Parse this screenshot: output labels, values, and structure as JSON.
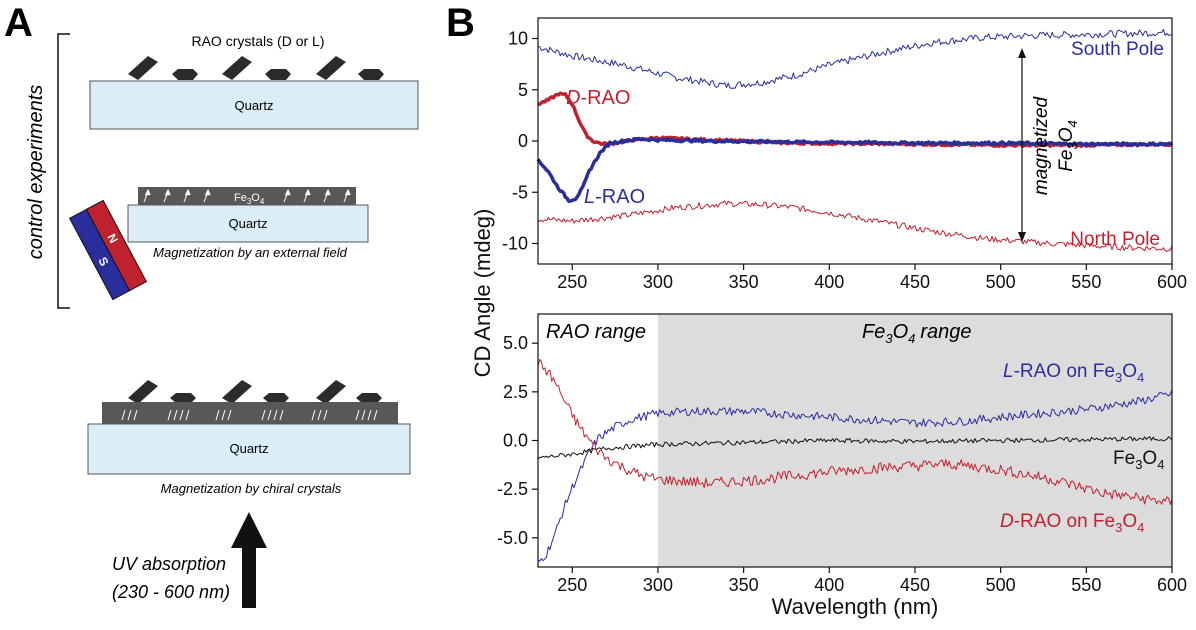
{
  "panel_a": {
    "letter": "A",
    "control_experiments": "control experiments",
    "rao_crystals": "RAO crystals (D or L)",
    "quartz": "Quartz",
    "fe3o4": {
      "base": "Fe",
      "sub1": "3",
      "mid": "O",
      "sub2": "4"
    },
    "magnet": {
      "north": "N",
      "south": "S"
    },
    "caption_external": "Magnetization by an external field",
    "caption_chiral": "Magnetization by chiral crystals",
    "uv_line1": "UV absorption",
    "uv_line2": "(230 - 600 nm)"
  },
  "panel_b": {
    "letter": "B",
    "shared_ylabel": "CD Angle (mdeg)",
    "xlabel": "Wavelength (nm)"
  },
  "colors": {
    "red": "#c0212e",
    "blue": "#2a2e9c",
    "black": "#111111",
    "quartz": "#dbeef7",
    "film": "#585858",
    "shade": "#dcdcdc"
  },
  "chart_data": [
    {
      "type": "line",
      "id": "top",
      "xlim": [
        230,
        600
      ],
      "ylim": [
        -12,
        12
      ],
      "xticks": [
        250,
        300,
        350,
        400,
        450,
        500,
        550,
        600
      ],
      "yticks": [
        10,
        5,
        0,
        -5,
        -10
      ],
      "annotations": {
        "d_rao": {
          "prefix": "D",
          "rest": "-RAO"
        },
        "l_rao": {
          "prefix": "L",
          "rest": "-RAO"
        },
        "south": "South Pole",
        "north": "North Pole",
        "magnetized": "magnetized",
        "fe": "Fe",
        "sub3": "3",
        "o": "O",
        "sub4": "4"
      },
      "series": [
        {
          "name": "South Pole",
          "color": "#2a2e9c",
          "width": 1,
          "noise": 0.35,
          "x": [
            230,
            250,
            280,
            310,
            340,
            360,
            380,
            400,
            430,
            460,
            490,
            520,
            550,
            575,
            600
          ],
          "y": [
            9.2,
            8.3,
            7.4,
            6.2,
            5.4,
            5.7,
            6.4,
            7.4,
            8.6,
            9.6,
            10.1,
            10.3,
            10.4,
            10.5,
            10.6
          ]
        },
        {
          "name": "North Pole",
          "color": "#c0212e",
          "width": 1,
          "noise": 0.3,
          "x": [
            230,
            250,
            280,
            310,
            340,
            360,
            380,
            400,
            430,
            460,
            490,
            520,
            550,
            575,
            600
          ],
          "y": [
            -7.6,
            -7.8,
            -7.3,
            -6.5,
            -6.1,
            -6.2,
            -6.5,
            -7.0,
            -7.9,
            -8.8,
            -9.5,
            -9.9,
            -10.2,
            -10.4,
            -10.5
          ]
        },
        {
          "name": "D-RAO",
          "color": "#c0212e",
          "width": 3.5,
          "noise": 0.12,
          "x": [
            230,
            236,
            242,
            246,
            250,
            254,
            258,
            262,
            268,
            275,
            285,
            300,
            330,
            380,
            450,
            500,
            550,
            600
          ],
          "y": [
            3.6,
            4.0,
            4.6,
            4.5,
            3.6,
            2.0,
            0.6,
            0.0,
            -0.3,
            -0.2,
            0.1,
            0.3,
            0.1,
            -0.2,
            -0.3,
            -0.4,
            -0.4,
            -0.3
          ]
        },
        {
          "name": "L-RAO",
          "color": "#2a2e9c",
          "width": 3.5,
          "noise": 0.12,
          "x": [
            230,
            236,
            242,
            248,
            252,
            256,
            260,
            266,
            272,
            280,
            290,
            300,
            330,
            380,
            450,
            500,
            550,
            600
          ],
          "y": [
            -1.8,
            -3.0,
            -4.6,
            -5.8,
            -5.6,
            -4.6,
            -2.9,
            -1.2,
            -0.2,
            0.0,
            0.2,
            0.1,
            0.0,
            -0.1,
            -0.2,
            -0.2,
            -0.3,
            -0.3
          ]
        }
      ]
    },
    {
      "type": "line",
      "id": "bottom",
      "xlim": [
        230,
        600
      ],
      "ylim": [
        -6.5,
        6.5
      ],
      "xticks": [
        250,
        300,
        350,
        400,
        450,
        500,
        550,
        600
      ],
      "yticks": [
        5.0,
        2.5,
        0.0,
        -2.5,
        -5.0
      ],
      "shaded_region": [
        300,
        600
      ],
      "annotations": {
        "rao_range": "RAO range",
        "fe_range": {
          "fe": "Fe",
          "sub3": "3",
          "o": "O",
          "sub4": "4",
          "rest": "range"
        },
        "l_on": {
          "prefix": "L",
          "rest": "-RAO on Fe",
          "sub3": "3",
          "o": "O",
          "sub4": "4"
        },
        "d_on": {
          "prefix": "D",
          "rest": "-RAO on Fe",
          "sub3": "3",
          "o": "O",
          "sub4": "4"
        },
        "fe3o4": {
          "fe": "Fe",
          "sub3": "3",
          "o": "O",
          "sub4": "4"
        }
      },
      "series": [
        {
          "name": "L-RAO on Fe3O4",
          "color": "#2a2e9c",
          "width": 1,
          "noise": 0.22,
          "x": [
            230,
            235,
            240,
            245,
            250,
            255,
            260,
            265,
            270,
            275,
            285,
            300,
            320,
            350,
            400,
            450,
            480,
            500,
            550,
            580,
            600
          ],
          "y": [
            -6.3,
            -5.8,
            -4.8,
            -3.5,
            -2.4,
            -1.5,
            -0.6,
            0.1,
            0.4,
            0.7,
            1.1,
            1.4,
            1.5,
            1.5,
            1.2,
            0.9,
            1.0,
            1.2,
            1.6,
            2.0,
            2.4
          ]
        },
        {
          "name": "Fe3O4",
          "color": "#111111",
          "width": 1,
          "noise": 0.12,
          "x": [
            230,
            250,
            270,
            300,
            350,
            400,
            450,
            500,
            550,
            600
          ],
          "y": [
            -0.9,
            -0.7,
            -0.4,
            -0.2,
            -0.1,
            0.0,
            -0.05,
            0.0,
            0.05,
            0.1
          ]
        },
        {
          "name": "D-RAO on Fe3O4",
          "color": "#c0212e",
          "width": 1,
          "noise": 0.28,
          "x": [
            230,
            235,
            240,
            245,
            250,
            255,
            260,
            265,
            270,
            280,
            290,
            300,
            330,
            360,
            400,
            430,
            470,
            500,
            530,
            560,
            600
          ],
          "y": [
            4.0,
            3.6,
            3.0,
            2.1,
            1.3,
            0.6,
            0.0,
            -0.5,
            -0.9,
            -1.4,
            -1.8,
            -2.0,
            -2.2,
            -2.0,
            -1.6,
            -1.4,
            -1.2,
            -1.5,
            -2.0,
            -2.7,
            -3.2
          ]
        }
      ]
    }
  ]
}
